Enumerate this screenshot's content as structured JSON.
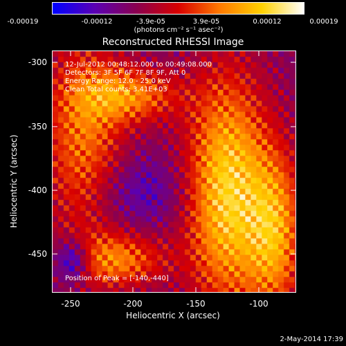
{
  "colorbar": {
    "ticks": [
      "-0.00019",
      "-0.00012",
      "-3.9e-05",
      "3.9e-05",
      "0.00012",
      "0.00019"
    ],
    "units": "(photons cm⁻² s⁻¹ asec⁻²)",
    "colors": [
      "#0000ff",
      "#5a00b4",
      "#8a0050",
      "#d80000",
      "#ff7a00",
      "#ffd000",
      "#ffffff"
    ]
  },
  "title": "Reconstructed RHESSI Image",
  "annotations": {
    "time": "12-Jul-2012 00:48:12.000 to 00:49:08.000",
    "detectors": "Detectors: 3F 5F 6F 7F 8F 9F, Att 0",
    "energy": "Energy Range: 12.0 - 25.0 keV",
    "clean": "Clean     Total counts: 3.41E+03",
    "peak": "Position of Peak = [-140,-440]"
  },
  "axes": {
    "xlabel": "Heliocentric X (arcsec)",
    "ylabel": "Heliocentric Y (arcsec)",
    "xticks": [
      "-250",
      "-200",
      "-150",
      "-100"
    ],
    "yticks": [
      "-300",
      "-350",
      "-400",
      "-450"
    ],
    "xlim": [
      -265,
      -70
    ],
    "ylim": [
      -483,
      -290
    ]
  },
  "timestamp": "2-May-2014 17:39"
}
